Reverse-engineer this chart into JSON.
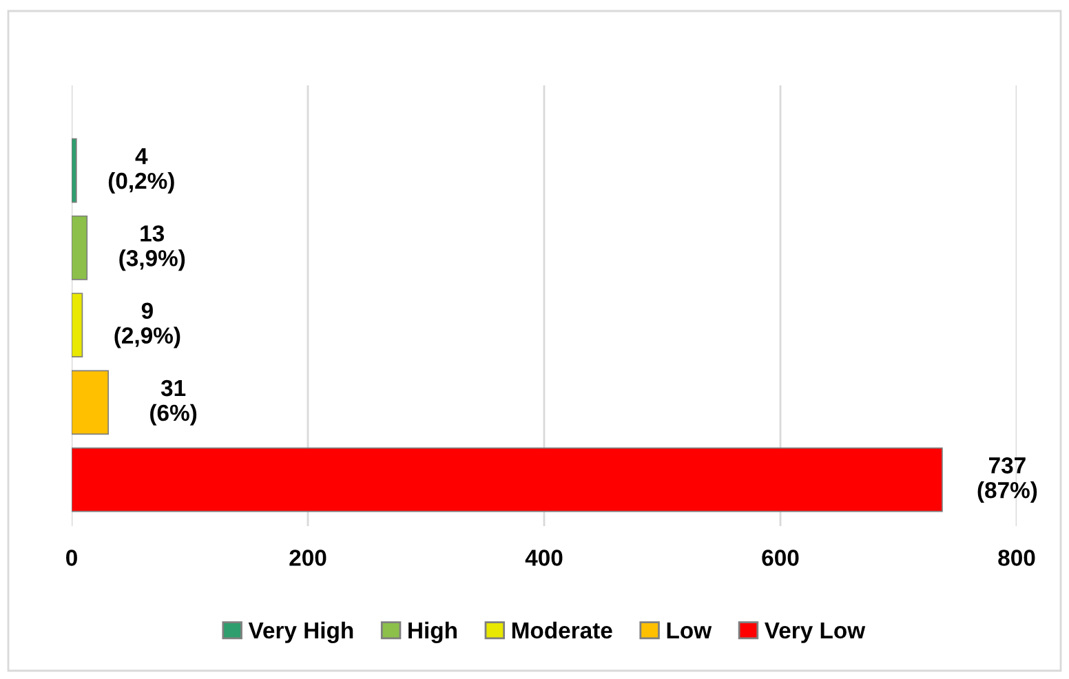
{
  "chart_data": {
    "type": "bar",
    "orientation": "horizontal",
    "categories": [
      null,
      null,
      null,
      null,
      null
    ],
    "series": [
      {
        "name": "Very High",
        "color": "#2e9e6e",
        "values": [
          4,
          null,
          null,
          null,
          null
        ],
        "value_labels": [
          "4\n(0,2%)",
          null,
          null,
          null,
          null
        ]
      },
      {
        "name": "High",
        "color": "#8cc04a",
        "values": [
          null,
          13,
          null,
          null,
          null
        ],
        "value_labels": [
          null,
          "13\n(3,9%)",
          null,
          null,
          null
        ]
      },
      {
        "name": "Moderate",
        "color": "#e8e800",
        "values": [
          null,
          null,
          9,
          null,
          null
        ],
        "value_labels": [
          null,
          null,
          "9\n(2,9%)",
          null,
          null
        ]
      },
      {
        "name": "Low",
        "color": "#ffc000",
        "values": [
          null,
          null,
          null,
          31,
          null
        ],
        "value_labels": [
          null,
          null,
          null,
          "31\n(6%)",
          null
        ]
      },
      {
        "name": "Very Low",
        "color": "#ff0000",
        "values": [
          null,
          null,
          null,
          null,
          737
        ],
        "value_labels": [
          null,
          null,
          null,
          null,
          "737\n(87%)"
        ]
      }
    ],
    "xlim": [
      0,
      800
    ],
    "xticks": [
      0,
      200,
      400,
      600,
      800
    ],
    "grid": "x",
    "legend": "bottom",
    "tick_labels": "x"
  }
}
